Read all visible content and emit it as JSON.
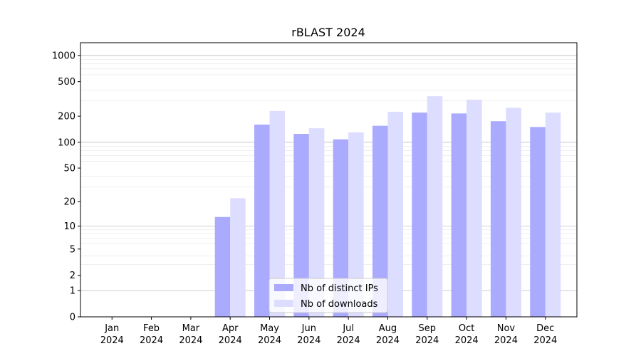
{
  "chart_data": {
    "type": "bar",
    "title": "rBLAST 2024",
    "xlabel": "",
    "ylabel": "",
    "scale": "symlog",
    "ylim": [
      0,
      1400
    ],
    "yticks": [
      0,
      1,
      2,
      5,
      10,
      20,
      50,
      100,
      200,
      500,
      1000
    ],
    "grid": "y-major-and-minor",
    "legend_position": "bottom-center",
    "categories": [
      [
        "Jan",
        "2024"
      ],
      [
        "Feb",
        "2024"
      ],
      [
        "Mar",
        "2024"
      ],
      [
        "Apr",
        "2024"
      ],
      [
        "May",
        "2024"
      ],
      [
        "Jun",
        "2024"
      ],
      [
        "Jul",
        "2024"
      ],
      [
        "Aug",
        "2024"
      ],
      [
        "Sep",
        "2024"
      ],
      [
        "Oct",
        "2024"
      ],
      [
        "Nov",
        "2024"
      ],
      [
        "Dec",
        "2024"
      ]
    ],
    "series": [
      {
        "name": "Nb of distinct IPs",
        "color": "#aaaaff",
        "values": [
          0,
          0,
          0,
          13,
          160,
          125,
          108,
          155,
          220,
          215,
          175,
          150
        ]
      },
      {
        "name": "Nb of downloads",
        "color": "#ddddff",
        "values": [
          0,
          0,
          0,
          22,
          230,
          145,
          130,
          225,
          340,
          310,
          250,
          220
        ]
      }
    ]
  }
}
